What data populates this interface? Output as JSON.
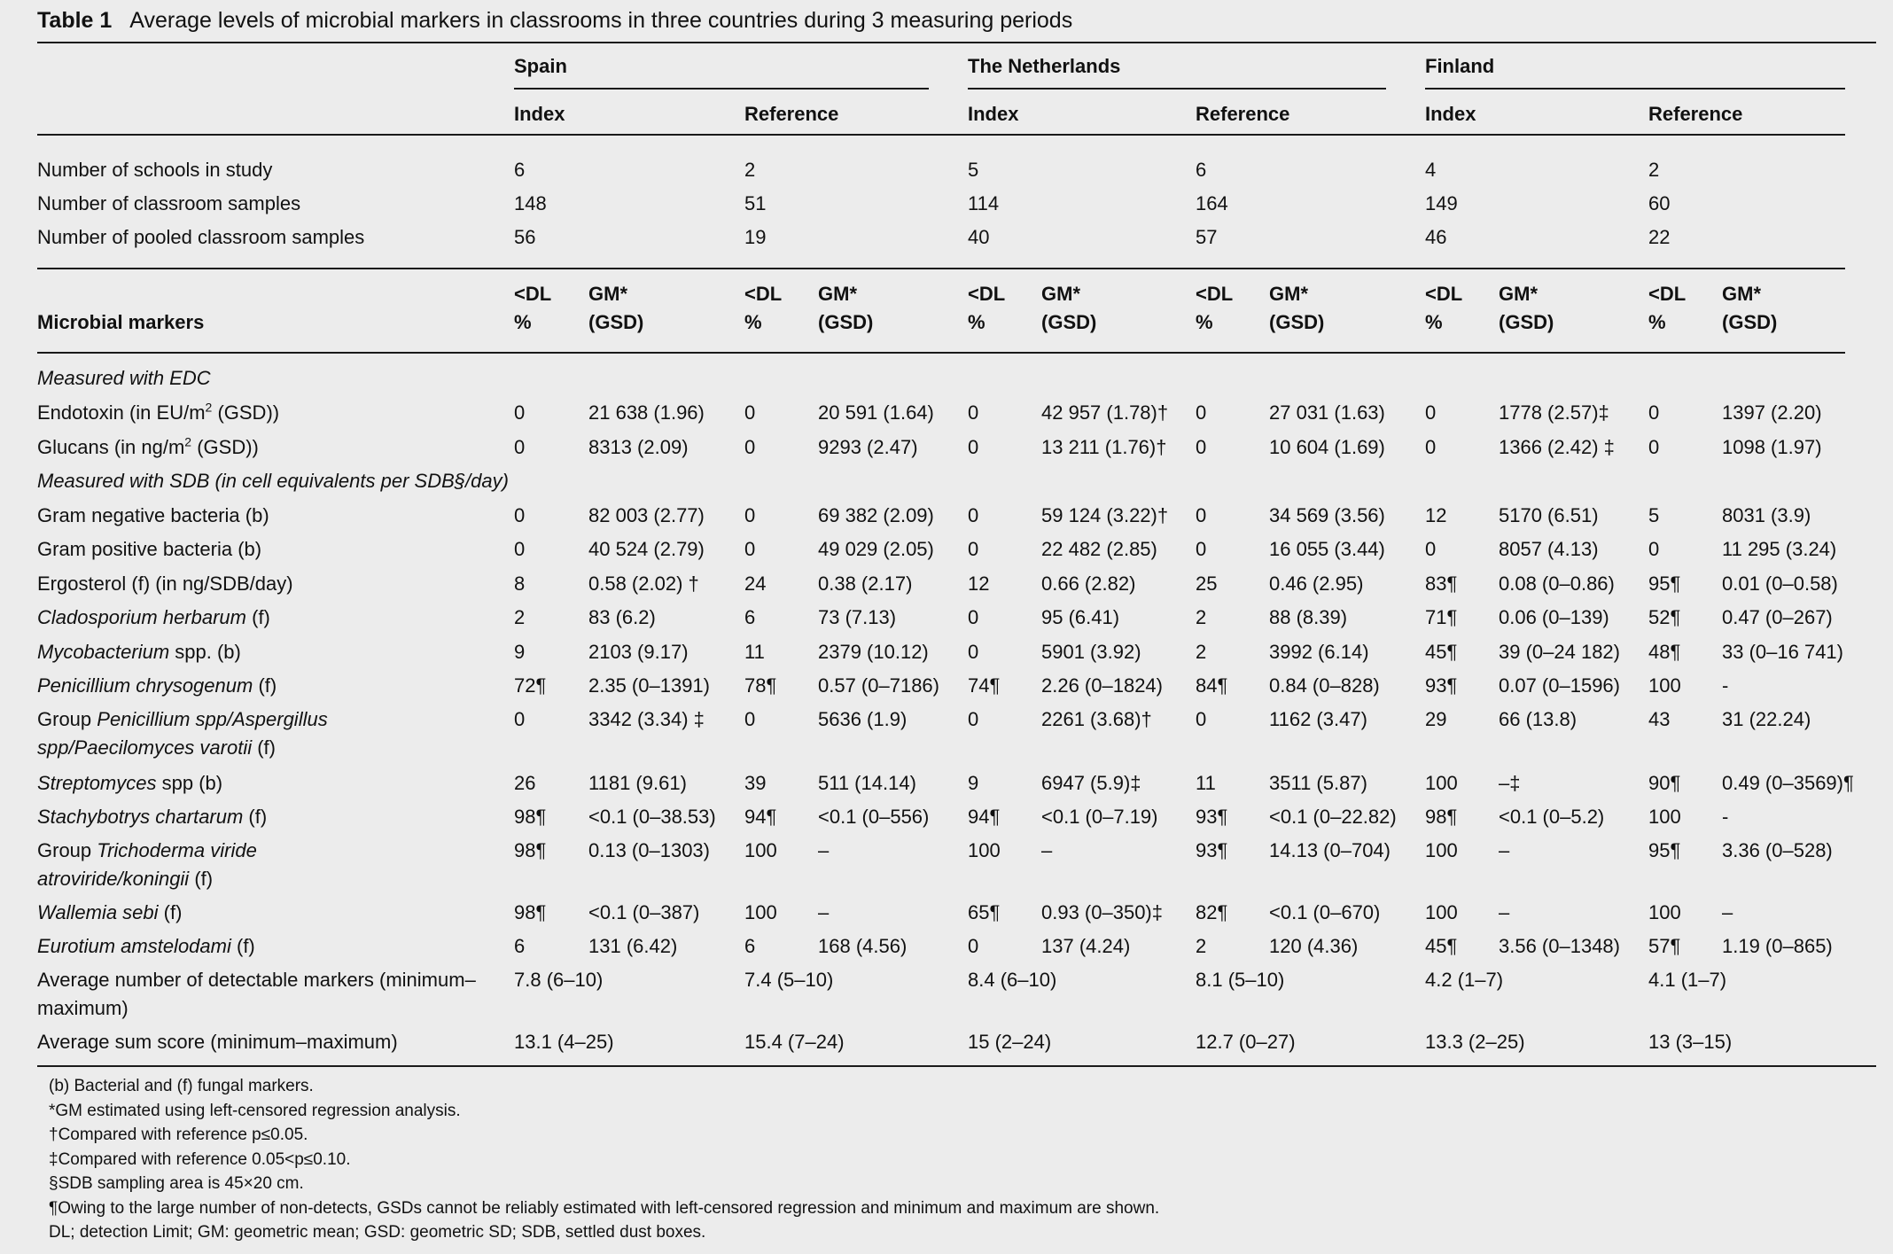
{
  "title": {
    "label": "Table 1",
    "text": "Average levels of microbial markers in classrooms in three countries during 3 measuring periods"
  },
  "countries": [
    "Spain",
    "The Netherlands",
    "Finland"
  ],
  "groups": [
    "Index",
    "Reference",
    "Index",
    "Reference",
    "Index",
    "Reference"
  ],
  "count_rows": [
    {
      "label": "Number of schools in study",
      "values": [
        "6",
        "2",
        "5",
        "6",
        "4",
        "2"
      ]
    },
    {
      "label": "Number of classroom samples",
      "values": [
        "148",
        "51",
        "114",
        "164",
        "149",
        "60"
      ]
    },
    {
      "label": "Number of pooled classroom samples",
      "values": [
        "56",
        "19",
        "40",
        "57",
        "46",
        "22"
      ]
    }
  ],
  "marker_header": {
    "label": "Microbial markers",
    "dl1": "<DL",
    "dl2": "%",
    "gm1": "GM*",
    "gm2": "(GSD)"
  },
  "section_edc": "Measured with EDC",
  "section_sdb": "Measured with SDB (in cell equivalents per SDB§/day)",
  "endotoxin": {
    "label_pre": "Endotoxin (in EU/m",
    "label_sup": "2",
    "label_post": " (GSD))",
    "cells": [
      "0",
      "21 638 (1.96)",
      "0",
      "20 591 (1.64)",
      "0",
      "42 957 (1.78)†",
      "0",
      "27 031 (1.63)",
      "0",
      "1778 (2.57)‡",
      "0",
      "1397 (2.20)"
    ]
  },
  "glucans": {
    "label_pre": "Glucans (in ng/m",
    "label_sup": "2",
    "label_post": " (GSD))",
    "cells": [
      "0",
      "8313 (2.09)",
      "0",
      "9293 (2.47)",
      "0",
      "13 211 (1.76)†",
      "0",
      "10 604 (1.69)",
      "0",
      "1366 (2.42) ‡",
      "0",
      "1098 (1.97)"
    ]
  },
  "sdb_rows": [
    {
      "label": "Gram negative bacteria (b)",
      "cells": [
        "0",
        "82 003 (2.77)",
        "0",
        "69 382 (2.09)",
        "0",
        "59 124 (3.22)†",
        "0",
        "34 569 (3.56)",
        "12",
        "5170 (6.51)",
        "5",
        "8031 (3.9)"
      ]
    },
    {
      "label": "Gram positive bacteria (b)",
      "cells": [
        "0",
        "40 524 (2.79)",
        "0",
        "49 029 (2.05)",
        "0",
        "22 482 (2.85)",
        "0",
        "16 055 (3.44)",
        "0",
        "8057 (4.13)",
        "0",
        "11 295 (3.24)"
      ]
    },
    {
      "label": "Ergosterol (f) (in ng/SDB/day)",
      "cells": [
        "8",
        "0.58 (2.02) †",
        "24",
        "0.38 (2.17)",
        "12",
        "0.66 (2.82)",
        "25",
        "0.46 (2.95)",
        "83¶",
        "0.08 (0–0.86)",
        "95¶",
        "0.01 (0–0.58)"
      ]
    },
    {
      "label_italic": "Cladosporium herbarum",
      "label_rest": " (f)",
      "cells": [
        "2",
        "83 (6.2)",
        "6",
        "73 (7.13)",
        "0",
        "95 (6.41)",
        "2",
        "88 (8.39)",
        "71¶",
        "0.06 (0–139)",
        "52¶",
        "0.47 (0–267)"
      ]
    },
    {
      "label_italic": "Mycobacterium",
      "label_rest": " spp. (b)",
      "cells": [
        "9",
        "2103 (9.17)",
        "11",
        "2379 (10.12)",
        "0",
        "5901 (3.92)",
        "2",
        "3992 (6.14)",
        "45¶",
        "39 (0–24 182)",
        "48¶",
        "33 (0–16 741)"
      ]
    },
    {
      "label_italic": "Penicillium chrysogenum",
      "label_rest": " (f)",
      "cells": [
        "72¶",
        "2.35 (0–1391)",
        "78¶",
        "0.57 (0–7186)",
        "74¶",
        "2.26 (0–1824)",
        "84¶",
        "0.84 (0–828)",
        "93¶",
        "0.07 (0–1596)",
        "100",
        "-"
      ]
    }
  ],
  "group_penicillium": {
    "line1_pre": "Group ",
    "line1_it": "Penicillium spp/Aspergillus",
    "line2_it": "spp/Paecilomyces varotii",
    "line2_rest": " (f)",
    "cells": [
      "0",
      "3342 (3.34) ‡",
      "0",
      "5636 (1.9)",
      "0",
      "2261 (3.68)†",
      "0",
      "1162 (3.47)",
      "29",
      "66 (13.8)",
      "43",
      "31 (22.24)"
    ]
  },
  "sdb_rows2": [
    {
      "label_italic": "Streptomyces",
      "label_rest": " spp (b)",
      "cells": [
        "26",
        "1181 (9.61)",
        "39",
        "511 (14.14)",
        "9",
        "6947 (5.9)‡",
        "11",
        "3511 (5.87)",
        "100",
        "–‡",
        "90¶",
        "0.49 (0–3569)¶"
      ]
    },
    {
      "label_italic": "Stachybotrys chartarum",
      "label_rest": " (f)",
      "cells": [
        "98¶",
        "<0.1 (0–38.53)",
        "94¶",
        "<0.1 (0–556)",
        "94¶",
        "<0.1 (0–7.19)",
        "93¶",
        "<0.1 (0–22.82)",
        "98¶",
        "<0.1 (0–5.2)",
        "100",
        "-"
      ]
    }
  ],
  "group_trichoderma": {
    "line1_pre": "Group ",
    "line1_it": "Trichoderma viride",
    "line2_it": "atroviride/koningii",
    "line2_rest": "  (f)",
    "cells": [
      "98¶",
      "0.13 (0–1303)",
      "100",
      "–",
      "100",
      "–",
      "93¶",
      "14.13 (0–704)",
      "100",
      "–",
      "95¶",
      "3.36 (0–528)"
    ]
  },
  "sdb_rows3": [
    {
      "label_italic": "Wallemia sebi",
      "label_rest": " (f)",
      "cells": [
        "98¶",
        "<0.1 (0–387)",
        "100",
        "–",
        "65¶",
        "0.93 (0–350)‡",
        "82¶",
        "<0.1 (0–670)",
        "100",
        "–",
        "100",
        "–"
      ]
    },
    {
      "label_italic": "Eurotium amstelodami",
      "label_rest": " (f)",
      "cells": [
        "6",
        "131 (6.42)",
        "6",
        "168 (4.56)",
        "0",
        "137 (4.24)",
        "2",
        "120 (4.36)",
        "45¶",
        "3.56 (0–1348)",
        "57¶",
        "1.19 (0–865)"
      ]
    }
  ],
  "avg_markers": {
    "line1": "Average number of detectable markers (minimum–",
    "line2": "maximum)",
    "values": [
      "7.8 (6–10)",
      "7.4 (5–10)",
      "8.4 (6–10)",
      "8.1 (5–10)",
      "4.2 (1–7)",
      "4.1 (1–7)"
    ]
  },
  "avg_sum": {
    "label": "Average sum score (minimum–maximum)",
    "values": [
      "13.1 (4–25)",
      "15.4 (7–24)",
      "15 (2–24)",
      "12.7 (0–27)",
      "13.3 (2–25)",
      "13 (3–15)"
    ]
  },
  "footnotes": [
    "(b) Bacterial and (f) fungal markers.",
    "*GM estimated using left-censored regression analysis.",
    "†Compared with reference p≤0.05.",
    "‡Compared with reference 0.05<p≤0.10.",
    "§SDB sampling area is 45×20 cm.",
    "¶Owing to the large number of non-detects, GSDs cannot be reliably estimated with left-censored regression and minimum and maximum are shown.",
    "DL; detection Limit; GM: geometric mean; GSD: geometric SD; SDB, settled dust boxes."
  ]
}
